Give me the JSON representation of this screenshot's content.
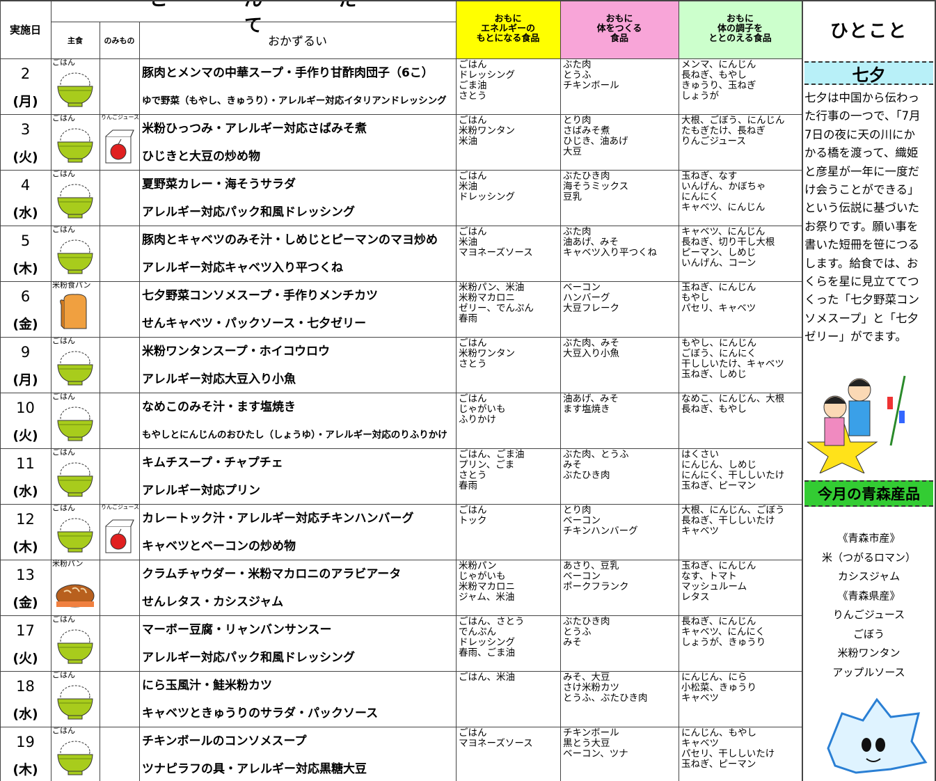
{
  "header": {
    "date": "実施日",
    "menu_title": "こんだて",
    "staple": "主食",
    "drink": "のみもの",
    "dishes": "おかずるい",
    "energy": [
      "おもに",
      "エネルギーの",
      "もとになる食品"
    ],
    "body": [
      "おもに",
      "体をつくる",
      "食品"
    ],
    "condition": [
      "おもに",
      "体の調子を",
      "ととのえる食品"
    ],
    "note": "ひとこと"
  },
  "rows": [
    {
      "day": "2",
      "weekday": "(月)",
      "staple": "ごはん",
      "drink": null,
      "dishes": [
        "豚肉とメンマの中華スープ・手作り甘酢肉団子（6こ）",
        "ゆで野菜（もやし、きゅうり）・アレルギー対応イタリアンドレッシング"
      ],
      "energy": [
        "ごはん",
        "ドレッシング",
        "ごま油",
        "さとう"
      ],
      "body": [
        "ぶた肉",
        "とうふ",
        "チキンボール"
      ],
      "condition": [
        "メンマ、にんじん",
        "長ねぎ、もやし",
        "きゅうり、玉ねぎ",
        "しょうが"
      ]
    },
    {
      "day": "3",
      "weekday": "(火)",
      "staple": "ごはん",
      "drink": "りんごジュース",
      "dishes": [
        "米粉ひっつみ・アレルギー対応さばみそ煮",
        "ひじきと大豆の炒め物"
      ],
      "energy": [
        "ごはん",
        "米粉ワンタン",
        "米油"
      ],
      "body": [
        "とり肉",
        "さばみそ煮",
        "ひじき、油あげ",
        "大豆"
      ],
      "condition": [
        "大根、ごぼう、にんじん",
        "たもぎたけ、長ねぎ",
        "りんごジュース"
      ]
    },
    {
      "day": "4",
      "weekday": "(水)",
      "staple": "ごはん",
      "drink": null,
      "dishes": [
        "夏野菜カレー・海そうサラダ",
        "アレルギー対応パック和風ドレッシング"
      ],
      "energy": [
        "ごはん",
        "米油",
        "ドレッシング"
      ],
      "body": [
        "ぶたひき肉",
        "海そうミックス",
        "豆乳"
      ],
      "condition": [
        "玉ねぎ、なす",
        "いんげん、かぼちゃ",
        "にんにく",
        "キャベツ、にんじん"
      ]
    },
    {
      "day": "5",
      "weekday": "(木)",
      "staple": "ごはん",
      "drink": null,
      "dishes": [
        "豚肉とキャベツのみそ汁・しめじとピーマンのマヨ炒め",
        "アレルギー対応キャベツ入り平つくね"
      ],
      "energy": [
        "ごはん",
        "米油",
        "マヨネーズソース"
      ],
      "body": [
        "ぶた肉",
        "油あげ、みそ",
        "キャベツ入り平つくね"
      ],
      "condition": [
        "キャベツ、にんじん",
        "長ねぎ、切り干し大根",
        "ピーマン、しめじ",
        "いんげん、コーン"
      ]
    },
    {
      "day": "6",
      "weekday": "(金)",
      "staple": "米粉食パン",
      "drink": null,
      "dishes": [
        "七夕野菜コンソメスープ・手作りメンチカツ",
        "せんキャベツ・パックソース・七夕ゼリー"
      ],
      "energy": [
        "米粉パン、米油",
        "米粉マカロニ",
        "ゼリー、でんぷん",
        "春雨"
      ],
      "body": [
        "ベーコン",
        "ハンバーグ",
        "大豆フレーク"
      ],
      "condition": [
        "玉ねぎ、にんじん",
        "もやし",
        "パセリ、キャベツ"
      ]
    },
    {
      "day": "9",
      "weekday": "(月)",
      "staple": "ごはん",
      "drink": null,
      "dishes": [
        "米粉ワンタンスープ・ホイコウロウ",
        "アレルギー対応大豆入り小魚"
      ],
      "energy": [
        "ごはん",
        "米粉ワンタン",
        "さとう"
      ],
      "body": [
        "ぶた肉、みそ",
        "大豆入り小魚"
      ],
      "condition": [
        "もやし、にんじん",
        "ごぼう、にんにく",
        "干ししいたけ、キャベツ",
        "玉ねぎ、しめじ"
      ]
    },
    {
      "day": "10",
      "weekday": "(火)",
      "staple": "ごはん",
      "drink": null,
      "dishes": [
        "なめこのみそ汁・ます塩焼き",
        "もやしとにんじんのおひたし（しょうゆ）・アレルギー対応のりふりかけ"
      ],
      "energy": [
        "ごはん",
        "じゃがいも",
        "ふりかけ"
      ],
      "body": [
        "油あげ、みそ",
        "ます塩焼き"
      ],
      "condition": [
        "なめこ、にんじん、大根",
        "長ねぎ、もやし"
      ]
    },
    {
      "day": "11",
      "weekday": "(水)",
      "staple": "ごはん",
      "drink": null,
      "dishes": [
        "キムチスープ・チャプチェ",
        "アレルギー対応プリン"
      ],
      "energy": [
        "ごはん、ごま油",
        "プリン、ごま",
        "さとう",
        "春雨"
      ],
      "body": [
        "ぶた肉、とうふ",
        "みそ",
        "ぶたひき肉"
      ],
      "condition": [
        "はくさい",
        "にんじん、しめじ",
        "にんにく、干ししいたけ",
        "玉ねぎ、ピーマン"
      ]
    },
    {
      "day": "12",
      "weekday": "(木)",
      "staple": "ごはん",
      "drink": "りんごジュース",
      "dishes": [
        "カレートック汁・アレルギー対応チキンハンバーグ",
        "キャベツとベーコンの炒め物"
      ],
      "energy": [
        "ごはん",
        "トック"
      ],
      "body": [
        "とり肉",
        "ベーコン",
        "チキンハンバーグ"
      ],
      "condition": [
        "大根、にんじん、ごぼう",
        "長ねぎ、干ししいたけ",
        "キャベツ"
      ]
    },
    {
      "day": "13",
      "weekday": "(金)",
      "staple": "米粉パン",
      "drink": null,
      "dishes": [
        "クラムチャウダー・米粉マカロニのアラビアータ",
        "せんレタス・カシスジャム"
      ],
      "energy": [
        "米粉パン",
        "じゃがいも",
        "米粉マカロニ",
        "ジャム、米油"
      ],
      "body": [
        "あさり、豆乳",
        "ベーコン",
        "ポークフランク"
      ],
      "condition": [
        "玉ねぎ、にんじん",
        "なす、トマト",
        "マッシュルーム",
        "レタス"
      ]
    },
    {
      "day": "17",
      "weekday": "(火)",
      "staple": "ごはん",
      "drink": null,
      "dishes": [
        "マーボー豆腐・リャンバンサンスー",
        "アレルギー対応パック和風ドレッシング"
      ],
      "energy": [
        "ごはん、さとう",
        "でんぷん",
        "ドレッシング",
        "春雨、ごま油"
      ],
      "body": [
        "ぶたひき肉",
        "とうふ",
        "みそ"
      ],
      "condition": [
        "長ねぎ、にんじん",
        "キャベツ、にんにく",
        "しょうが、きゅうり"
      ]
    },
    {
      "day": "18",
      "weekday": "(水)",
      "staple": "ごはん",
      "drink": null,
      "dishes": [
        "にら玉風汁・鮭米粉カツ",
        "キャベツときゅうりのサラダ・パックソース"
      ],
      "energy": [
        "ごはん、米油"
      ],
      "body": [
        "みそ、大豆",
        "さけ米粉カツ",
        "とうふ、ぶたひき肉"
      ],
      "condition": [
        "にんじん、にら",
        "小松菜、きゅうり",
        "キャベツ"
      ]
    },
    {
      "day": "19",
      "weekday": "(木)",
      "staple": "ごはん",
      "drink": null,
      "dishes": [
        "チキンボールのコンソメスープ",
        "ツナピラフの具・アレルギー対応黒糖大豆"
      ],
      "energy": [
        "ごはん",
        "マヨネーズソース"
      ],
      "body": [
        "チキンボール",
        "黒とう大豆",
        "ベーコン、ツナ"
      ],
      "condition": [
        "にんじん、もやし",
        "キャベツ",
        "パセリ、干ししいたけ",
        "玉ねぎ、ピーマン"
      ]
    }
  ],
  "sidebar": {
    "topic_title": "七夕",
    "topic_text": "七夕は中国から伝わった行事の一つで、「7月7日の夜に天の川にかかる橋を渡って、織姫と彦星が一年に一度だけ会うことができる」　という伝説に基づいたお祭りです。願い事を書いた短冊を笹につるします。給食では、おくらを星に見立ててつくった「七夕野菜コンソメスープ」と「七夕ゼリー」がでます。",
    "products_title": "今月の青森産品",
    "products": [
      "《青森市産》",
      "米（つがるロマン）",
      "カシスジャム",
      "《青森県産》",
      "りんごジュース",
      "ごぼう",
      "米粉ワンタン",
      "アップルソース"
    ]
  }
}
